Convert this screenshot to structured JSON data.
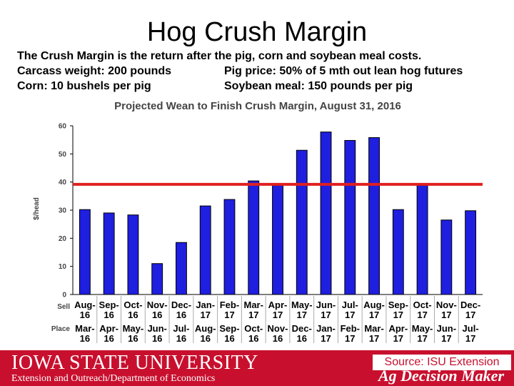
{
  "slide": {
    "title": "Hog Crush Margin",
    "line1": "The Crush Margin is the return after the pig, corn and soybean meal costs.",
    "line2_left": "Carcass weight:  200 pounds",
    "line2_right": "Pig price:  50% of 5 mth out lean hog futures",
    "line3_left": "Corn:  10 bushels per pig",
    "line3_right": "Soybean meal:  150 pounds per pig"
  },
  "footer": {
    "university": "IOWA STATE UNIVERSITY",
    "department": "Extension and Outreach/Department of Economics",
    "source": "Source: ISU Extension",
    "brand": "Ag Decision Maker"
  },
  "colors": {
    "bar": "#1f1fe0",
    "reference_line": "#e02020",
    "footer": "#c8102e"
  },
  "chart_data": {
    "type": "bar",
    "title": "Projected Wean to Finish Crush Margin, August 31, 2016",
    "ylabel": "$/head",
    "ylim": [
      0,
      60
    ],
    "yticks": [
      0,
      10,
      20,
      30,
      40,
      50,
      60
    ],
    "grid": false,
    "row_labels": [
      "Sell",
      "Place"
    ],
    "sell": [
      "Aug-16",
      "Sep-16",
      "Oct-16",
      "Nov-16",
      "Dec-16",
      "Jan-17",
      "Feb-17",
      "Mar-17",
      "Apr-17",
      "May-17",
      "Jun-17",
      "Jul-17",
      "Aug-17",
      "Sep-17",
      "Oct-17",
      "Nov-17",
      "Dec-17"
    ],
    "place": [
      "Mar-16",
      "Apr-16",
      "May-16",
      "Jun-16",
      "Jul-16",
      "Aug-16",
      "Sep-16",
      "Oct-16",
      "Nov-16",
      "Dec-16",
      "Jan-17",
      "Feb-17",
      "Mar-17",
      "Apr-17",
      "May-17",
      "Jun-17",
      "Jul-17"
    ],
    "values": [
      30.2,
      29.0,
      28.3,
      11.0,
      18.5,
      31.5,
      33.8,
      40.4,
      38.8,
      51.3,
      57.8,
      54.8,
      55.8,
      30.2,
      38.8,
      26.5,
      29.8
    ],
    "reference_value": 39.2
  }
}
